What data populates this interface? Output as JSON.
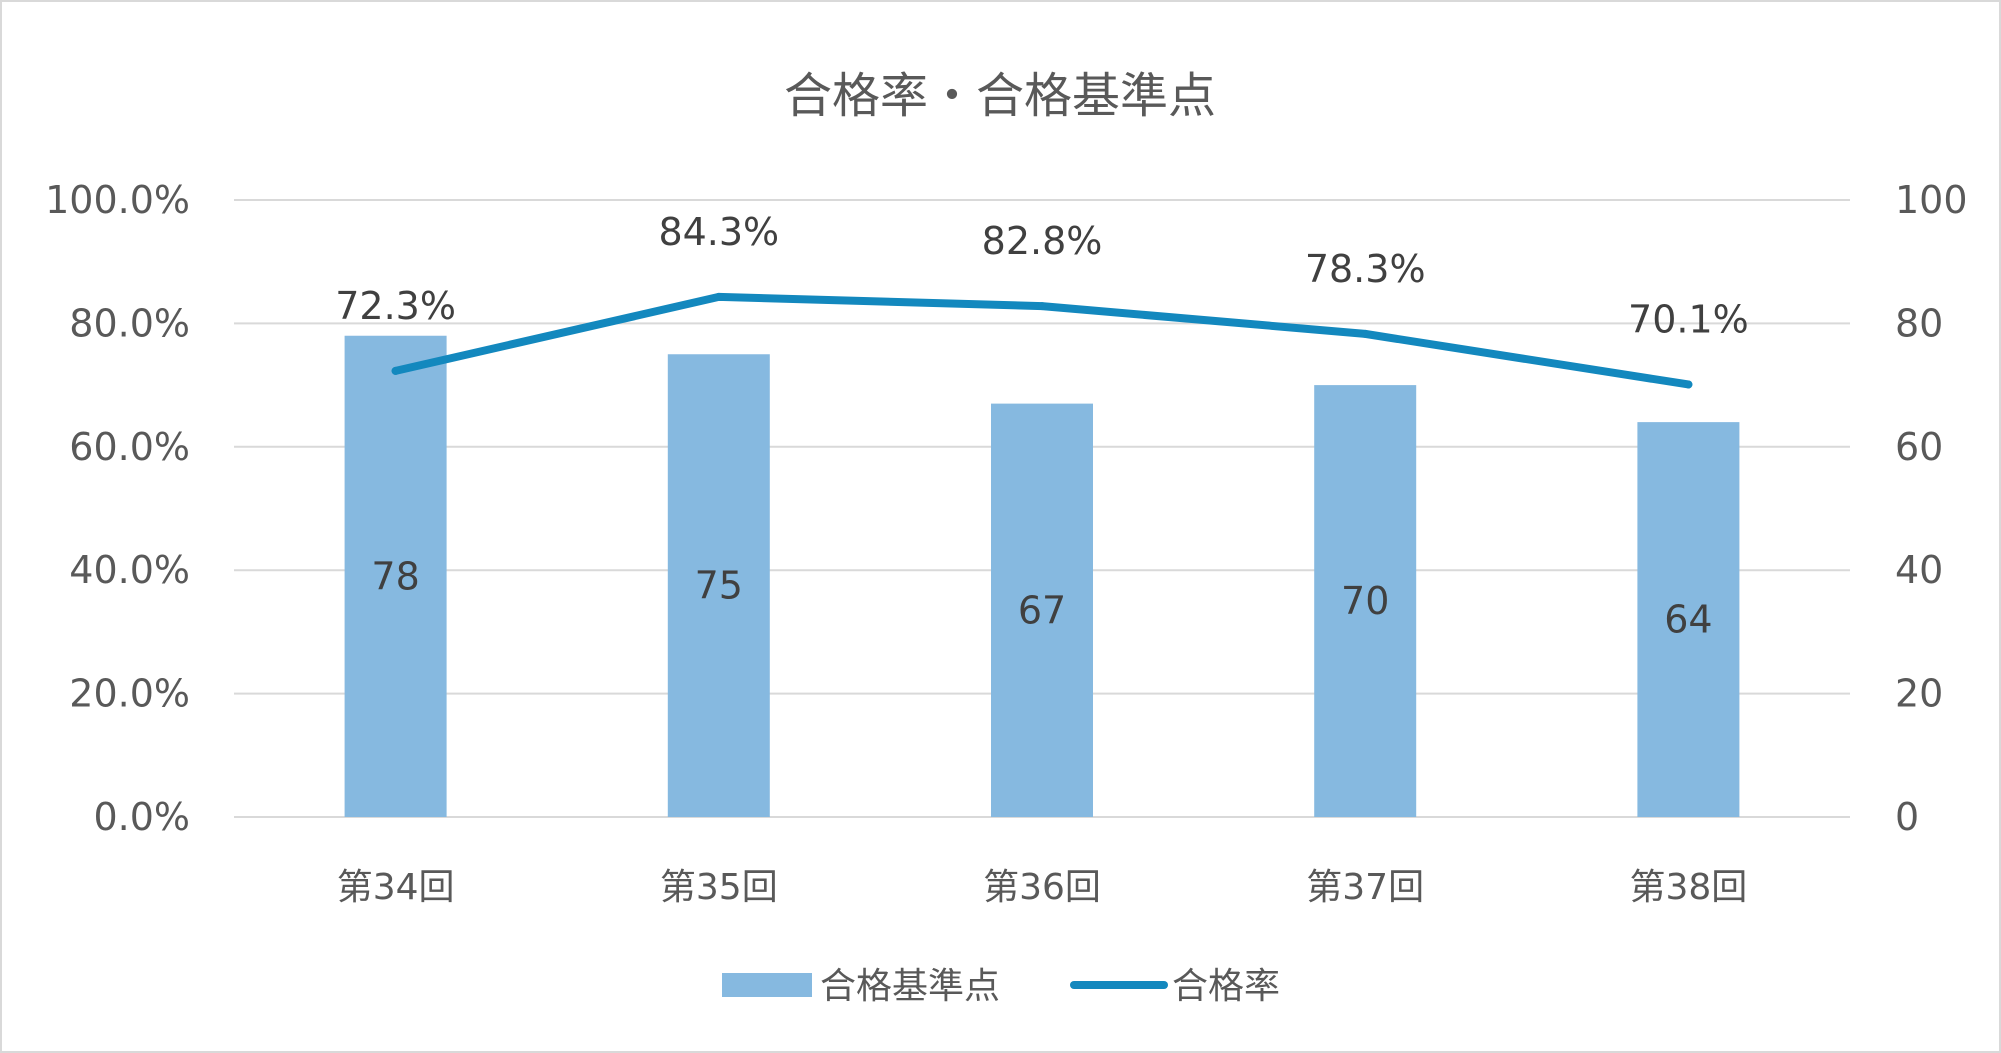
{
  "chart_data": {
    "type": "bar",
    "title": "合格率・合格基準点",
    "categories": [
      "第34回",
      "第35回",
      "第36回",
      "第37回",
      "第38回"
    ],
    "series": [
      {
        "name": "合格基準点",
        "type": "bar",
        "axis": "right",
        "values": [
          78,
          75,
          67,
          70,
          64
        ],
        "labels": [
          "78",
          "75",
          "67",
          "70",
          "64"
        ],
        "color": "#86b9e0"
      },
      {
        "name": "合格率",
        "type": "line",
        "axis": "left",
        "values": [
          72.3,
          84.3,
          82.8,
          78.3,
          70.1
        ],
        "labels": [
          "72.3%",
          "84.3%",
          "82.8%",
          "78.3%",
          "70.1%"
        ],
        "color": "#1388be"
      }
    ],
    "left_axis": {
      "ylim": [
        0,
        100
      ],
      "ticks": [
        "0.0%",
        "20.0%",
        "40.0%",
        "60.0%",
        "80.0%",
        "100.0%"
      ]
    },
    "right_axis": {
      "ylim": [
        0,
        100
      ],
      "ticks": [
        "0",
        "20",
        "40",
        "60",
        "80",
        "100"
      ]
    },
    "grid": true,
    "legend": "bottom"
  }
}
